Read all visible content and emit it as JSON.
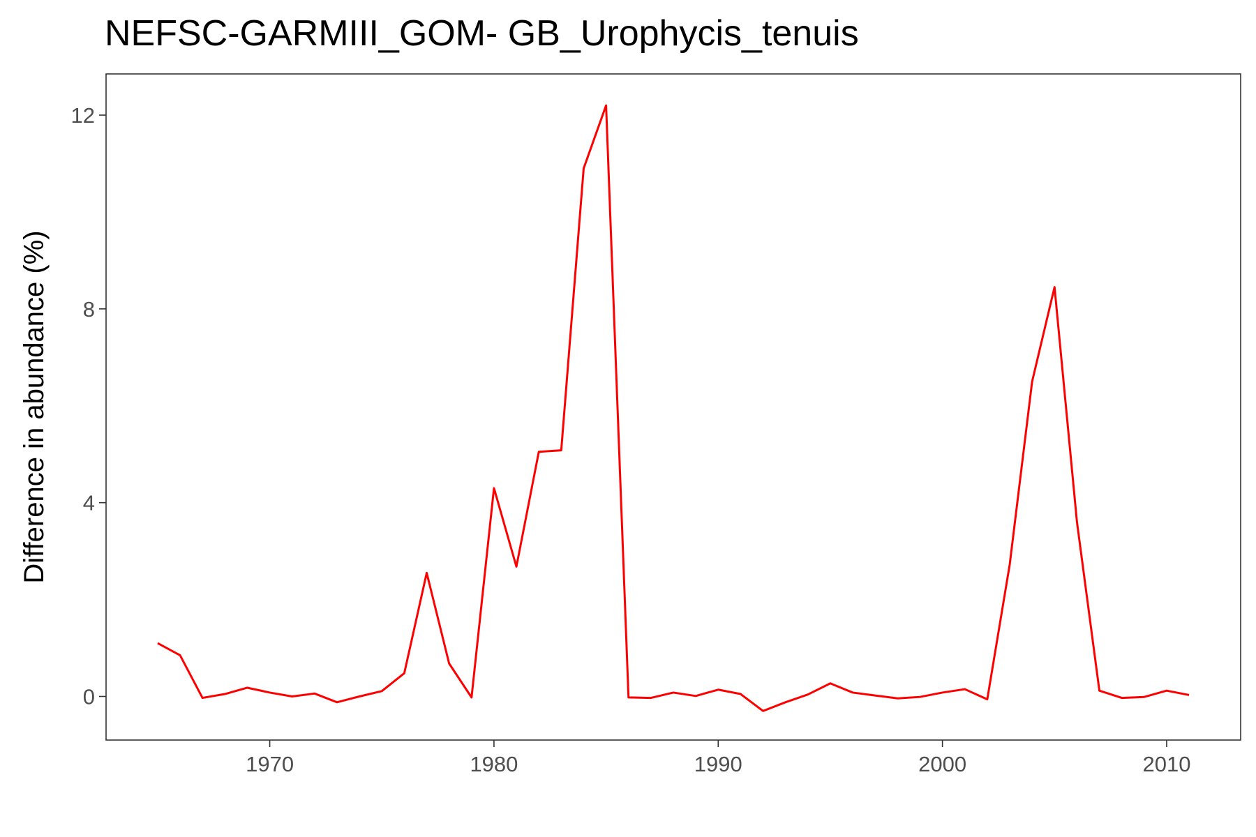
{
  "chart_data": {
    "type": "line",
    "title": "NEFSC-GARMIII_GOM- GB_Urophycis_tenuis",
    "xlabel": "",
    "ylabel": "Difference in abundance (%)",
    "xlim": [
      1962.7,
      2013.3
    ],
    "ylim": [
      -0.9,
      12.85
    ],
    "x_ticks": [
      1970,
      1980,
      1990,
      2000,
      2010
    ],
    "y_ticks": [
      0,
      4,
      8,
      12
    ],
    "x_tick_labels": [
      "1970",
      "1980",
      "1990",
      "2000",
      "2010"
    ],
    "y_tick_labels": [
      "0",
      "4",
      "8",
      "12"
    ],
    "grid": false,
    "legend": "none",
    "series": [
      {
        "color": "#ff0000",
        "x": [
          1965,
          1966,
          1967,
          1968,
          1969,
          1970,
          1971,
          1972,
          1973,
          1974,
          1975,
          1976,
          1977,
          1978,
          1979,
          1980,
          1981,
          1982,
          1983,
          1984,
          1985,
          1986,
          1987,
          1988,
          1989,
          1990,
          1991,
          1992,
          1993,
          1994,
          1995,
          1996,
          1997,
          1998,
          1999,
          2000,
          2001,
          2002,
          2003,
          2004,
          2005,
          2006,
          2007,
          2008,
          2009,
          2010,
          2011
        ],
        "y": [
          1.1,
          0.85,
          -0.03,
          0.05,
          0.18,
          0.08,
          0.0,
          0.06,
          -0.12,
          0.0,
          0.11,
          0.48,
          2.55,
          0.68,
          -0.02,
          4.3,
          2.68,
          5.05,
          5.08,
          10.9,
          12.2,
          -0.02,
          -0.03,
          0.08,
          0.01,
          0.14,
          0.05,
          -0.3,
          -0.12,
          0.04,
          0.27,
          0.08,
          0.02,
          -0.04,
          -0.01,
          0.08,
          0.15,
          -0.06,
          2.72,
          6.5,
          8.45,
          3.6,
          0.12,
          -0.03,
          -0.01,
          0.12,
          0.03
        ]
      }
    ]
  }
}
